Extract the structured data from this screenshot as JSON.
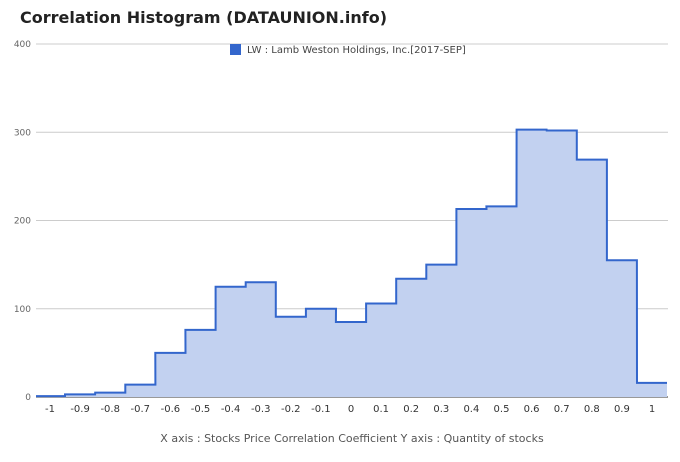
{
  "chart_data": {
    "type": "area",
    "title": "Correlation Histogram (DATAUNION.info)",
    "legend": {
      "label": "LW : Lamb Weston Holdings, Inc.[2017-SEP]",
      "placement": "top-center"
    },
    "x_tick_labels": [
      "-1",
      "-0.9",
      "-0.8",
      "-0.7",
      "-0.6",
      "-0.5",
      "-0.4",
      "-0.3",
      "-0.2",
      "-0.1",
      "0",
      "0.1",
      "0.2",
      "0.3",
      "0.4",
      "0.5",
      "0.6",
      "0.7",
      "0.8",
      "0.9",
      "1"
    ],
    "y_ticks": [
      0,
      100,
      200,
      300,
      400
    ],
    "ylim": [
      0,
      400
    ],
    "xlim": [
      -1,
      1
    ],
    "grid": true,
    "footer": "X axis : Stocks Price Correlation Coefficient  Y axis : Quantity of stocks",
    "series": [
      {
        "name": "LW : Lamb Weston Holdings, Inc.[2017-SEP]",
        "x": [
          -1,
          -0.9,
          -0.8,
          -0.7,
          -0.6,
          -0.5,
          -0.4,
          -0.3,
          -0.2,
          -0.1,
          0,
          0.1,
          0.2,
          0.3,
          0.4,
          0.5,
          0.6,
          0.7,
          0.8,
          0.9,
          1
        ],
        "values": [
          1,
          3,
          5,
          14,
          50,
          76,
          125,
          130,
          91,
          100,
          85,
          106,
          134,
          150,
          213,
          216,
          303,
          302,
          269,
          155,
          16
        ]
      }
    ],
    "colors": {
      "line": "#3366cc",
      "fill": "#c2d1f0",
      "grid": "#cccccc"
    }
  }
}
